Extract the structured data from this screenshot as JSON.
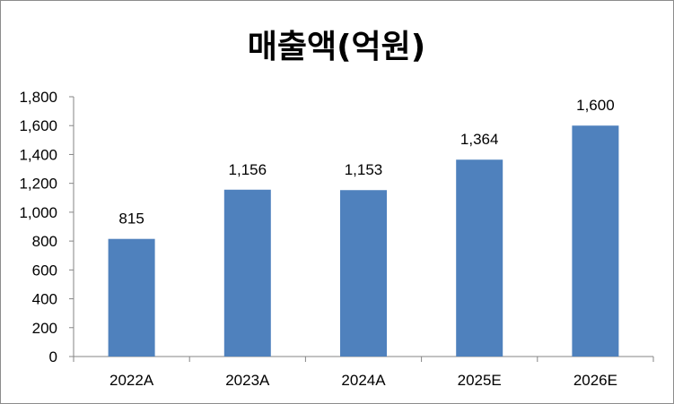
{
  "chart_data": {
    "type": "bar",
    "title": "매출액(억원)",
    "categories": [
      "2022A",
      "2023A",
      "2024A",
      "2025E",
      "2026E"
    ],
    "series": [
      {
        "values": [
          815,
          1156,
          1153,
          1364,
          1600
        ],
        "color": "#4f81bd"
      }
    ],
    "data_labels": [
      "815",
      "1,156",
      "1,153",
      "1,364",
      "1,600"
    ],
    "ylim": [
      0,
      1800
    ],
    "yticks": [
      0,
      200,
      400,
      600,
      800,
      1000,
      1200,
      1400,
      1600,
      1800
    ],
    "ytick_labels": [
      "0",
      "200",
      "400",
      "600",
      "800",
      "1,000",
      "1,200",
      "1,400",
      "1,600",
      "1,800"
    ],
    "grid": false,
    "legend": "none"
  }
}
